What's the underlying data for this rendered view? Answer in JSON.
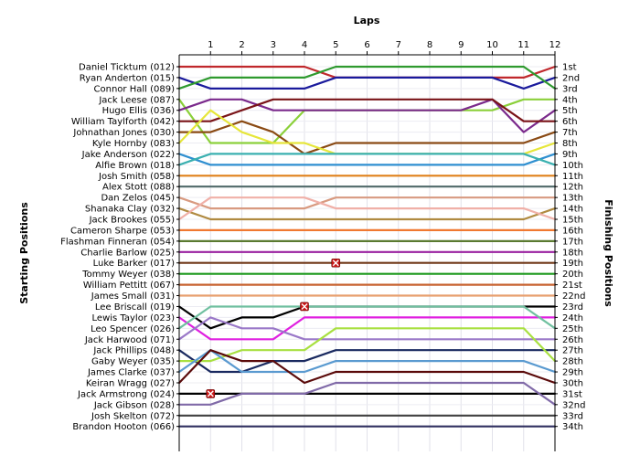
{
  "chart_data": {
    "type": "line",
    "title": "",
    "xlabel": "Laps",
    "ylabel_left": "Starting Positions",
    "ylabel_right": "Finishing Positions",
    "laps": [
      1,
      2,
      3,
      4,
      5,
      6,
      7,
      8,
      9,
      10,
      11,
      12
    ],
    "grid": true,
    "starting_positions": [
      "Daniel Ticktum (012)",
      "Ryan Anderton (015)",
      "Connor Hall (089)",
      "Jack Leese (087)",
      "Hugo Ellis (036)",
      "William Taylforth (042)",
      "Johnathan Jones (030)",
      "Kyle Hornby (083)",
      "Jake Anderson (022)",
      "Alfie Brown (018)",
      "Josh Smith (058)",
      "Alex Stott (088)",
      "Dan Zelos (045)",
      "Shanaka Clay (032)",
      "Jack Brookes (055)",
      "Cameron Sharpe (053)",
      "Flashman Finneran (054)",
      "Charlie Barlow (025)",
      "Luke Barker (017)",
      "Tommy Weyer (038)",
      "William Pettitt (067)",
      "James Small (031)",
      "Lee Briscall (019)",
      "Lewis Taylor (023)",
      "Leo Spencer (026)",
      "Jack Harwood (071)",
      "Jack Phillips (048)",
      "Gaby Weyer (035)",
      "James Clarke (037)",
      "Keiran Wragg (027)",
      "Jack Armstrong (024)",
      "Jack Gibson (028)",
      "Josh Skelton (072)",
      "Brandon Hooton (066)"
    ],
    "finishing_positions": [
      "1st",
      "2nd",
      "3rd",
      "4th",
      "5th",
      "6th",
      "7th",
      "8th",
      "9th",
      "10th",
      "11th",
      "12th",
      "13th",
      "14th",
      "15th",
      "16th",
      "17th",
      "18th",
      "19th",
      "20th",
      "21st",
      "22nd",
      "23rd",
      "24th",
      "25th",
      "26th",
      "27th",
      "28th",
      "29th",
      "30th",
      "31st",
      "32nd",
      "33rd",
      "34th"
    ],
    "series": [
      {
        "start": 1,
        "color": "#c0282c",
        "positions": [
          1,
          1,
          1,
          1,
          2,
          2,
          2,
          2,
          2,
          2,
          2,
          1
        ]
      },
      {
        "start": 2,
        "color": "#1a1a9c",
        "positions": [
          3,
          3,
          3,
          3,
          2,
          2,
          2,
          2,
          2,
          2,
          3,
          2
        ]
      },
      {
        "start": 3,
        "color": "#2f9a2f",
        "positions": [
          2,
          2,
          2,
          2,
          1,
          1,
          1,
          1,
          1,
          1,
          1,
          3
        ]
      },
      {
        "start": 4,
        "color": "#8bd03a",
        "positions": [
          8,
          8,
          8,
          5,
          5,
          5,
          5,
          5,
          5,
          5,
          4,
          4
        ]
      },
      {
        "start": 5,
        "color": "#7b2a8c",
        "positions": [
          4,
          4,
          5,
          5,
          5,
          5,
          5,
          5,
          5,
          4,
          7,
          5
        ]
      },
      {
        "start": 6,
        "color": "#7a1418",
        "positions": [
          6,
          5,
          4,
          4,
          4,
          4,
          4,
          4,
          4,
          4,
          6,
          6
        ]
      },
      {
        "start": 7,
        "color": "#8a4a14",
        "positions": [
          7,
          6,
          7,
          9,
          8,
          8,
          8,
          8,
          8,
          8,
          8,
          7
        ]
      },
      {
        "start": 8,
        "color": "#e6e63a",
        "positions": [
          5,
          7,
          8,
          8,
          9,
          9,
          9,
          9,
          9,
          9,
          9,
          8
        ]
      },
      {
        "start": 9,
        "color": "#2f8fd0",
        "positions": [
          10,
          10,
          10,
          10,
          10,
          10,
          10,
          10,
          10,
          10,
          10,
          9
        ]
      },
      {
        "start": 10,
        "color": "#3ab0b0",
        "positions": [
          9,
          9,
          9,
          9,
          9,
          9,
          9,
          9,
          9,
          9,
          9,
          10
        ]
      },
      {
        "start": 11,
        "color": "#e0801a",
        "positions": [
          11,
          11,
          11,
          11,
          11,
          11,
          11,
          11,
          11,
          11,
          11,
          11
        ]
      },
      {
        "start": 12,
        "color": "#506a6a",
        "positions": [
          12,
          12,
          12,
          12,
          12,
          12,
          12,
          12,
          12,
          12,
          12,
          12
        ]
      },
      {
        "start": 13,
        "color": "#d89a80",
        "positions": [
          14,
          14,
          14,
          14,
          13,
          13,
          13,
          13,
          13,
          13,
          13,
          13
        ]
      },
      {
        "start": 14,
        "color": "#b08a40",
        "positions": [
          15,
          15,
          15,
          15,
          15,
          15,
          15,
          15,
          15,
          15,
          15,
          14
        ]
      },
      {
        "start": 15,
        "color": "#f0b0a8",
        "positions": [
          13,
          13,
          13,
          13,
          14,
          14,
          14,
          14,
          14,
          14,
          14,
          15
        ]
      },
      {
        "start": 16,
        "color": "#f07830",
        "positions": [
          16,
          16,
          16,
          16,
          16,
          16,
          16,
          16,
          16,
          16,
          16,
          16
        ]
      },
      {
        "start": 17,
        "color": "#5a7a30",
        "positions": [
          17,
          17,
          17,
          17,
          17,
          17,
          17,
          17,
          17,
          17,
          17,
          17
        ]
      },
      {
        "start": 18,
        "color": "#9a20a0",
        "positions": [
          18,
          18,
          18,
          18,
          18,
          18,
          18,
          18,
          18,
          18,
          18,
          18
        ]
      },
      {
        "start": 19,
        "color": "#703818",
        "positions": [
          19,
          19,
          19,
          19,
          19,
          19,
          19,
          19,
          19,
          19,
          19,
          19
        ]
      },
      {
        "start": 20,
        "color": "#1e9a1e",
        "positions": [
          20,
          20,
          20,
          20,
          20,
          20,
          20,
          20,
          20,
          20,
          20,
          20
        ]
      },
      {
        "start": 21,
        "color": "#c86432",
        "positions": [
          21,
          21,
          21,
          21,
          21,
          21,
          21,
          21,
          21,
          21,
          21,
          21
        ]
      },
      {
        "start": 22,
        "color": "#e8a070",
        "positions": [
          22,
          22,
          22,
          22,
          22,
          22,
          22,
          22,
          22,
          22,
          22,
          22
        ]
      },
      {
        "start": 23,
        "color": "#000000",
        "positions": [
          25,
          24,
          24,
          23,
          23,
          23,
          23,
          23,
          23,
          23,
          23,
          23
        ]
      },
      {
        "start": 24,
        "color": "#e020e0",
        "positions": [
          26,
          26,
          26,
          24,
          24,
          24,
          24,
          24,
          24,
          24,
          24,
          24
        ]
      },
      {
        "start": 25,
        "color": "#70c0a0",
        "positions": [
          23,
          23,
          23,
          23,
          23,
          23,
          23,
          23,
          23,
          23,
          23,
          25
        ]
      },
      {
        "start": 26,
        "color": "#9a78c8",
        "positions": [
          24,
          25,
          25,
          26,
          26,
          26,
          26,
          26,
          26,
          26,
          26,
          26
        ]
      },
      {
        "start": 27,
        "color": "#1a2a60",
        "positions": [
          29,
          29,
          28,
          28,
          27,
          27,
          27,
          27,
          27,
          27,
          27,
          27
        ]
      },
      {
        "start": 28,
        "color": "#a8e040",
        "positions": [
          28,
          27,
          27,
          27,
          25,
          25,
          25,
          25,
          25,
          25,
          25,
          28
        ]
      },
      {
        "start": 29,
        "color": "#5a9ad0",
        "positions": [
          27,
          29,
          29,
          29,
          28,
          28,
          28,
          28,
          28,
          28,
          28,
          29
        ]
      },
      {
        "start": 30,
        "color": "#5a0a0a",
        "positions": [
          27,
          28,
          28,
          30,
          29,
          29,
          29,
          29,
          29,
          29,
          29,
          30
        ]
      },
      {
        "start": 31,
        "color": "#000000",
        "positions": [
          31,
          31,
          31,
          31,
          31,
          31,
          31,
          31,
          31,
          31,
          31,
          31
        ]
      },
      {
        "start": 32,
        "color": "#806aa8",
        "positions": [
          32,
          31,
          31,
          31,
          30,
          30,
          30,
          30,
          30,
          30,
          30,
          32
        ]
      },
      {
        "start": 33,
        "color": "#404040",
        "positions": [
          33,
          33,
          33,
          33,
          33,
          33,
          33,
          33,
          33,
          33,
          33,
          33
        ]
      },
      {
        "start": 34,
        "color": "#303060",
        "positions": [
          34,
          34,
          34,
          34,
          34,
          34,
          34,
          34,
          34,
          34,
          34,
          34
        ]
      }
    ],
    "retirements": [
      {
        "lap": 1,
        "position": 31
      },
      {
        "lap": 4,
        "position": 23
      },
      {
        "lap": 5,
        "position": 19
      }
    ]
  }
}
